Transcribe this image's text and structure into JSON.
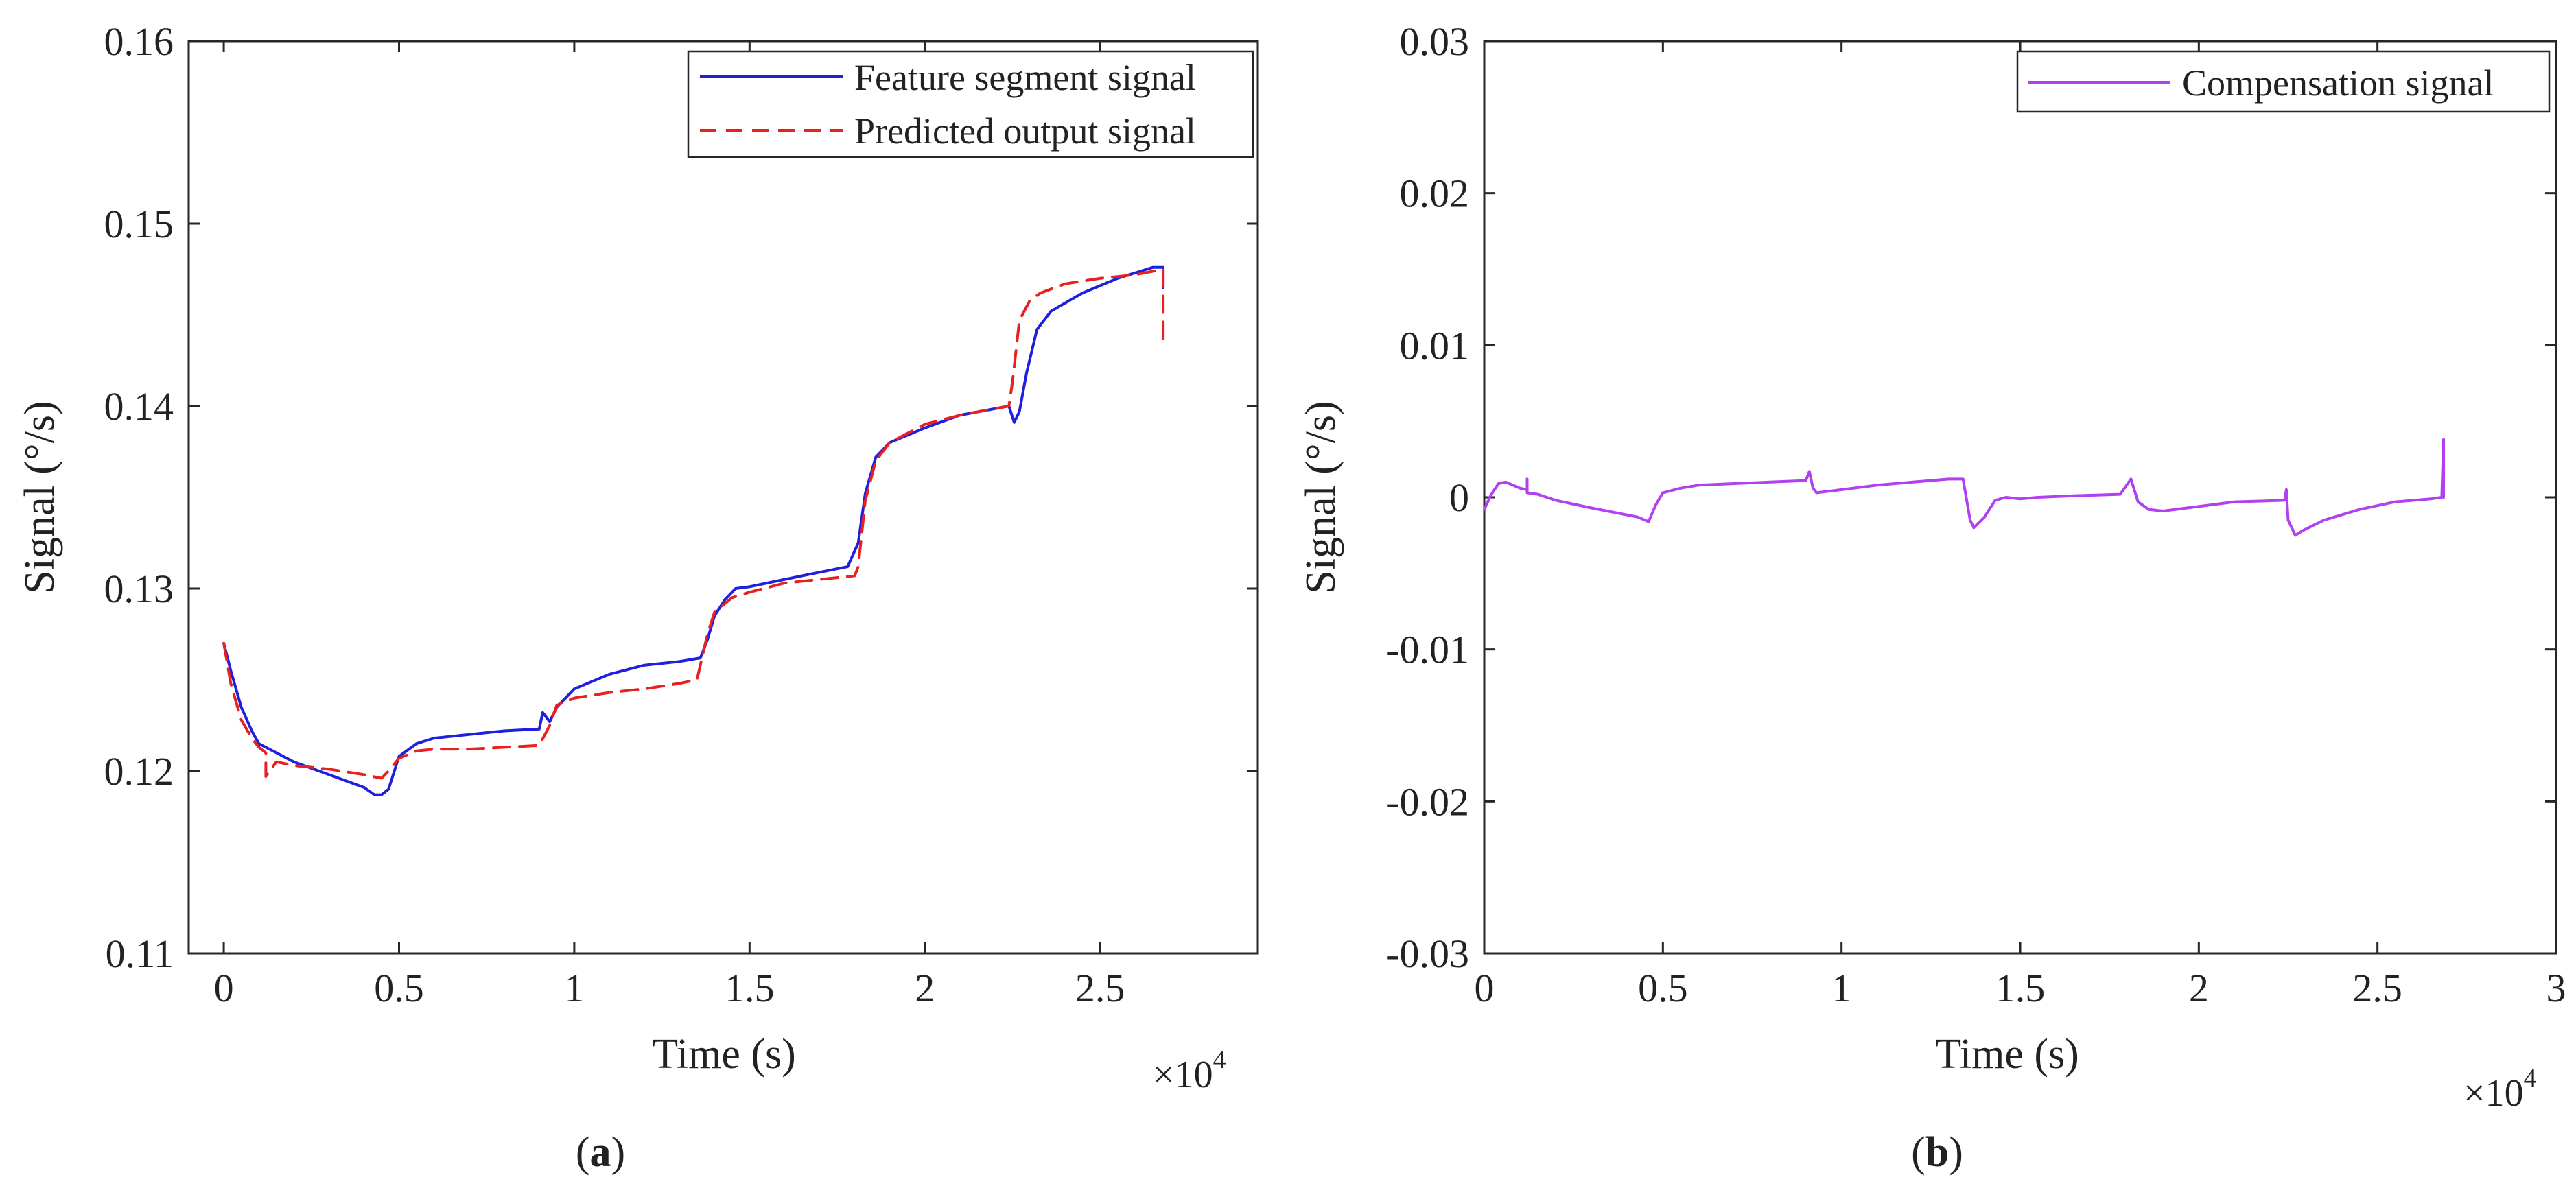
{
  "chart_data": [
    {
      "panel_label": "(a)",
      "panel_letter": "a",
      "type": "line",
      "title": "",
      "xlabel": "Time (s)",
      "ylabel": "Signal (°/s)",
      "x_multiplier": "×10",
      "x_multiplier_exp": "4",
      "xlim": [
        -0.1,
        2.95
      ],
      "ylim": [
        0.11,
        0.16
      ],
      "xticks": [
        0,
        0.5,
        1,
        1.5,
        2,
        2.5
      ],
      "xtick_labels": [
        "0",
        "0.5",
        "1",
        "1.5",
        "2",
        "2.5"
      ],
      "yticks": [
        0.11,
        0.12,
        0.13,
        0.14,
        0.15,
        0.16
      ],
      "ytick_labels": [
        "0.11",
        "0.12",
        "0.13",
        "0.14",
        "0.15",
        "0.16"
      ],
      "legend_position": "top-right",
      "series": [
        {
          "name": "Feature segment signal",
          "color": "#1f1fe0",
          "style": "solid",
          "x": [
            0,
            0.02,
            0.05,
            0.08,
            0.1,
            0.15,
            0.2,
            0.3,
            0.4,
            0.43,
            0.45,
            0.47,
            0.5,
            0.55,
            0.6,
            0.7,
            0.8,
            0.9,
            0.91,
            0.93,
            0.95,
            1.0,
            1.05,
            1.1,
            1.2,
            1.3,
            1.36,
            1.38,
            1.4,
            1.43,
            1.46,
            1.5,
            1.55,
            1.65,
            1.78,
            1.81,
            1.83,
            1.86,
            1.9,
            2.0,
            2.1,
            2.24,
            2.255,
            2.27,
            2.29,
            2.32,
            2.36,
            2.45,
            2.55,
            2.65,
            2.68,
            2.68
          ],
          "values": [
            0.127,
            0.1255,
            0.1235,
            0.1222,
            0.1215,
            0.121,
            0.1205,
            0.1198,
            0.1191,
            0.1187,
            0.1187,
            0.119,
            0.1208,
            0.1215,
            0.1218,
            0.122,
            0.1222,
            0.1223,
            0.1232,
            0.1227,
            0.1235,
            0.1245,
            0.1249,
            0.1253,
            0.1258,
            0.126,
            0.1262,
            0.1272,
            0.1285,
            0.1294,
            0.13,
            0.1301,
            0.1303,
            0.1307,
            0.1312,
            0.1325,
            0.1352,
            0.1372,
            0.138,
            0.1388,
            0.1395,
            0.14,
            0.1391,
            0.1397,
            0.1418,
            0.1442,
            0.1452,
            0.1462,
            0.147,
            0.1476,
            0.1476,
            0.1465
          ]
        },
        {
          "name": "Predicted output signal",
          "color": "#e82020",
          "style": "dashed",
          "x": [
            0,
            0.02,
            0.05,
            0.08,
            0.1,
            0.12,
            0.12,
            0.15,
            0.2,
            0.3,
            0.4,
            0.45,
            0.47,
            0.5,
            0.55,
            0.6,
            0.7,
            0.8,
            0.9,
            0.93,
            0.95,
            1.0,
            1.1,
            1.2,
            1.3,
            1.35,
            1.38,
            1.4,
            1.45,
            1.5,
            1.6,
            1.7,
            1.8,
            1.81,
            1.83,
            1.86,
            1.9,
            2.0,
            2.1,
            2.24,
            2.25,
            2.27,
            2.3,
            2.33,
            2.4,
            2.5,
            2.6,
            2.68,
            2.68
          ],
          "values": [
            0.127,
            0.1248,
            0.1228,
            0.1218,
            0.1213,
            0.121,
            0.1197,
            0.1205,
            0.1203,
            0.1201,
            0.1198,
            0.1196,
            0.12,
            0.1207,
            0.1211,
            0.1212,
            0.1212,
            0.1213,
            0.1214,
            0.1225,
            0.1236,
            0.124,
            0.1243,
            0.1245,
            0.1248,
            0.125,
            0.1275,
            0.1287,
            0.1295,
            0.1298,
            0.1303,
            0.1305,
            0.1307,
            0.1312,
            0.1348,
            0.137,
            0.138,
            0.139,
            0.1395,
            0.14,
            0.1413,
            0.1447,
            0.1458,
            0.1462,
            0.1467,
            0.147,
            0.1472,
            0.1475,
            0.1437
          ]
        }
      ]
    },
    {
      "panel_label": "(b)",
      "panel_letter": "b",
      "type": "line",
      "title": "",
      "xlabel": "Time (s)",
      "ylabel": "Signal (°/s)",
      "x_multiplier": "×10",
      "x_multiplier_exp": "4",
      "xlim": [
        0,
        3
      ],
      "ylim": [
        -0.03,
        0.03
      ],
      "xticks": [
        0,
        0.5,
        1,
        1.5,
        2,
        2.5,
        3
      ],
      "xtick_labels": [
        "0",
        "0.5",
        "1",
        "1.5",
        "2",
        "2.5",
        "3"
      ],
      "yticks": [
        -0.03,
        -0.02,
        -0.01,
        0,
        0.01,
        0.02,
        0.03
      ],
      "ytick_labels": [
        "-0.03",
        "-0.02",
        "-0.01",
        "0",
        "0.01",
        "0.02",
        "0.03"
      ],
      "legend_position": "top-right",
      "series": [
        {
          "name": "Compensation signal",
          "color": "#b040f0",
          "style": "solid",
          "x": [
            0,
            0.02,
            0.04,
            0.06,
            0.1,
            0.12,
            0.12,
            0.12,
            0.15,
            0.2,
            0.3,
            0.43,
            0.45,
            0.46,
            0.48,
            0.5,
            0.55,
            0.6,
            0.7,
            0.8,
            0.9,
            0.91,
            0.92,
            0.93,
            1.0,
            1.1,
            1.2,
            1.3,
            1.34,
            1.36,
            1.37,
            1.4,
            1.43,
            1.46,
            1.5,
            1.55,
            1.65,
            1.78,
            1.81,
            1.83,
            1.86,
            1.9,
            2.0,
            2.1,
            2.24,
            2.245,
            2.25,
            2.27,
            2.29,
            2.35,
            2.45,
            2.55,
            2.65,
            2.68,
            2.685,
            2.685
          ],
          "values": [
            -0.0008,
            0.0002,
            0.0009,
            0.001,
            0.0006,
            0.0005,
            0.0012,
            0.0003,
            0.0002,
            -0.0002,
            -0.0007,
            -0.0013,
            -0.0015,
            -0.0016,
            -0.0005,
            0.0003,
            0.0006,
            0.0008,
            0.0009,
            0.001,
            0.0011,
            0.0017,
            0.0006,
            0.0003,
            0.0005,
            0.0008,
            0.001,
            0.0012,
            0.0012,
            -0.0015,
            -0.002,
            -0.0013,
            -0.0002,
            0.0,
            -0.0001,
            0.0,
            0.0001,
            0.0002,
            0.0012,
            -0.0003,
            -0.0008,
            -0.0009,
            -0.0006,
            -0.0003,
            -0.0002,
            0.0005,
            -0.0015,
            -0.0025,
            -0.0022,
            -0.0015,
            -0.0008,
            -0.0003,
            -0.0001,
            0.0,
            0.0038,
            0.0
          ]
        }
      ]
    }
  ]
}
